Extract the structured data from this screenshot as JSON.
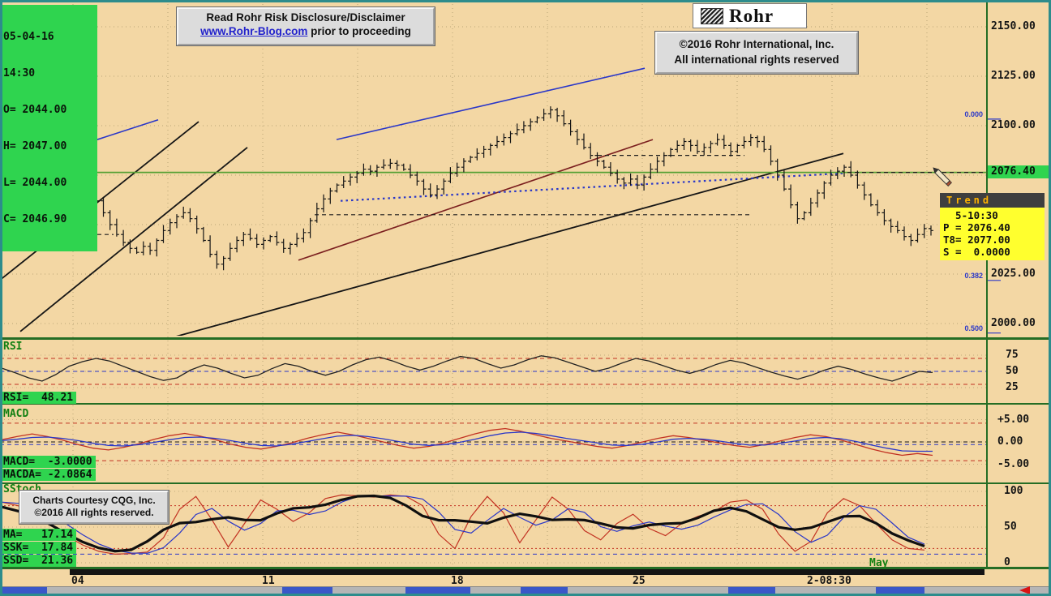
{
  "colors": {
    "background": "#f3d7a4",
    "frame_teal": "#2d8c8c",
    "green_box": "#2fd44f",
    "divider_green": "#256d25",
    "green_line": "#55a033",
    "grid": "#a38f63",
    "red": "#c23222",
    "blue": "#2936c8",
    "black": "#151515",
    "maroon": "#7b1f1f",
    "yellow": "#ffff2e",
    "trend_header_text": "#ffb300",
    "link_blue": "#2222cc"
  },
  "header": {
    "info_box": {
      "date": "05-04-16",
      "time": "14:30",
      "open": "O= 2044.00",
      "high": "H= 2047.00",
      "low": "L= 2044.00",
      "close": "C= 2046.90"
    },
    "disclaimer": {
      "title": "Read Rohr Risk Disclosure/Disclaimer",
      "link": "www.Rohr-Blog.com",
      "suffix": " prior to proceeding"
    },
    "logo_text": "Rohr",
    "copyright": {
      "line1": "©2016 Rohr International, Inc.",
      "line2": "All international rights reserved"
    }
  },
  "price_axis": {
    "tick_labels": [
      "2150.00",
      "2125.00",
      "2100.00",
      "2025.00",
      "2000.00"
    ],
    "current_price": "2076.40"
  },
  "fib_levels": [
    {
      "label": "0.000",
      "price": 2103.3
    },
    {
      "label": "0.382",
      "price": 2021.8
    },
    {
      "label": "0.500",
      "price": 1995.2
    }
  ],
  "trend_box": {
    "title": "Trend",
    "rows": [
      "  5-10:30",
      "P = 2076.40",
      "T8= 2077.00",
      "S =  0.0000"
    ]
  },
  "indicators": {
    "rsi": {
      "label": "RSI",
      "readout": "RSI=  48.21",
      "scale_labels": [
        "75",
        "50",
        "25"
      ]
    },
    "macd": {
      "label": "MACD",
      "readout1": "MACD=  -3.0000",
      "readout2": "MACDA= -2.0864",
      "scale_labels": [
        "+5.00",
        "0.00",
        "-5.00"
      ]
    },
    "stoch": {
      "label": "SStoch",
      "readout1": "MA=   17.14",
      "readout2": "SSK=  17.84",
      "readout3": "SSD=  21.36",
      "scale_labels": [
        "100",
        "50",
        "0"
      ]
    }
  },
  "cqg_box": {
    "line1": "Charts Courtesy CQG, Inc.",
    "line2": "©2016 All rights reserved."
  },
  "time_axis": {
    "labels": [
      {
        "text": "04",
        "x": 88
      },
      {
        "text": "11",
        "x": 323
      },
      {
        "text": "18",
        "x": 556
      },
      {
        "text": "25",
        "x": 780
      },
      {
        "text": "2-08:30",
        "x": 995
      }
    ],
    "month": "May"
  },
  "scrollbar": {
    "segments": [
      {
        "x": 0,
        "w": 58
      },
      {
        "x": 348,
        "w": 62
      },
      {
        "x": 500,
        "w": 80
      },
      {
        "x": 642,
        "w": 58
      },
      {
        "x": 898,
        "w": 58
      },
      {
        "x": 1080,
        "w": 60
      }
    ]
  },
  "chart_data": [
    {
      "id": "price",
      "type": "bar",
      "style": "ohlc-bars",
      "ylim": [
        1990,
        2160
      ],
      "visible_yticks": [
        2150,
        2125,
        2100,
        2025,
        2000
      ],
      "current_level": 2076.4,
      "last_bar": {
        "open": 2044.0,
        "high": 2047.0,
        "low": 2044.0,
        "close": 2046.9
      },
      "closes": [
        2053,
        2056,
        2052,
        2048,
        2050,
        2041,
        2045,
        2050,
        2054,
        2058,
        2062,
        2066,
        2069,
        2067,
        2062,
        2056,
        2050,
        2045,
        2041,
        2038,
        2036,
        2039,
        2037,
        2042,
        2047,
        2051,
        2054,
        2056,
        2053,
        2048,
        2042,
        2035,
        2030,
        2033,
        2038,
        2042,
        2045,
        2043,
        2040,
        2042,
        2044,
        2041,
        2038,
        2040,
        2043,
        2046,
        2052,
        2058,
        2063,
        2067,
        2070,
        2072,
        2074,
        2076,
        2078,
        2077,
        2079,
        2080,
        2081,
        2080,
        2078,
        2075,
        2072,
        2068,
        2065,
        2068,
        2072,
        2076,
        2079,
        2082,
        2084,
        2086,
        2088,
        2090,
        2092,
        2094,
        2096,
        2098,
        2100,
        2102,
        2104,
        2106,
        2108,
        2105,
        2101,
        2097,
        2093,
        2089,
        2085,
        2082,
        2079,
        2076,
        2073,
        2071,
        2073,
        2070,
        2074,
        2078,
        2082,
        2085,
        2088,
        2090,
        2092,
        2090,
        2087,
        2089,
        2091,
        2093,
        2090,
        2087,
        2090,
        2092,
        2094,
        2092,
        2088,
        2082,
        2075,
        2068,
        2060,
        2053,
        2056,
        2061,
        2066,
        2071,
        2075,
        2077,
        2079,
        2075,
        2070,
        2065,
        2060,
        2056,
        2052,
        2049,
        2047,
        2044,
        2042,
        2045,
        2048,
        2047
      ],
      "annotations": {
        "horizontal_green_line": 2076.4,
        "dashed_levels": [
          {
            "price": 2085,
            "x1": 737,
            "x2": 918
          },
          {
            "price": 2055,
            "x1": 388,
            "x2": 925
          },
          {
            "price": 2045,
            "x1": 48,
            "x2": 140
          },
          {
            "price": 2076.4,
            "x1": 1045,
            "x2": 1214
          }
        ],
        "trendlines": [
          {
            "color_key": "blue",
            "x1": 0,
            "price1": 2077,
            "x2": 195,
            "price2": 2103
          },
          {
            "color_key": "black",
            "x1": 0,
            "price1": 2022,
            "x2": 245,
            "price2": 2102
          },
          {
            "color_key": "black",
            "x1": 25,
            "price1": 1996,
            "x2": 305,
            "price2": 2089
          },
          {
            "color_key": "black",
            "x1": 195,
            "price1": 1991,
            "x2": 1040,
            "price2": 2086
          },
          {
            "color_key": "maroon",
            "x1": 368,
            "price1": 2032,
            "x2": 805,
            "price2": 2093
          },
          {
            "color_key": "blue",
            "x1": 415,
            "price1": 2093,
            "x2": 795,
            "price2": 2129
          },
          {
            "color_key": "blue",
            "style": "dotted",
            "x1": 420,
            "price1": 2062,
            "x2": 1042,
            "price2": 2076
          }
        ]
      }
    },
    {
      "id": "rsi",
      "type": "line",
      "ylim": [
        0,
        100
      ],
      "last": 48.21,
      "values": [
        55,
        48,
        40,
        35,
        45,
        58,
        65,
        70,
        66,
        58,
        50,
        42,
        36,
        40,
        52,
        60,
        55,
        47,
        40,
        44,
        54,
        62,
        58,
        50,
        44,
        50,
        60,
        68,
        72,
        66,
        58,
        52,
        58,
        66,
        73,
        70,
        62,
        55,
        60,
        68,
        74,
        71,
        64,
        57,
        50,
        55,
        63,
        70,
        66,
        59,
        52,
        47,
        53,
        61,
        67,
        63,
        56,
        49,
        43,
        38,
        44,
        52,
        58,
        53,
        46,
        40,
        35,
        42,
        50,
        48.21
      ],
      "ref_lines": [
        {
          "value": 70,
          "color_key": "red",
          "style": "dashed"
        },
        {
          "value": 50,
          "color_key": "blue",
          "style": "dashed"
        },
        {
          "value": 30,
          "color_key": "red",
          "style": "dashed"
        }
      ]
    },
    {
      "id": "macd",
      "type": "line",
      "ylim": [
        -7.5,
        7.5
      ],
      "last": {
        "MACD": -3.0,
        "MACDA": -2.0864
      },
      "series": [
        {
          "name": "MACD",
          "color_key": "red",
          "values": [
            0.5,
            1.2,
            1.8,
            1.2,
            0.4,
            -0.6,
            -1.4,
            -1.8,
            -1.2,
            -0.4,
            0.6,
            1.4,
            1.9,
            1.3,
            0.5,
            -0.5,
            -1.2,
            -1.6,
            -1.0,
            -0.2,
            0.8,
            1.6,
            2.2,
            1.6,
            0.8,
            0.0,
            -0.8,
            -1.4,
            -1.0,
            -0.2,
            0.8,
            1.8,
            2.6,
            3.0,
            2.4,
            1.6,
            0.8,
            0.2,
            -0.4,
            -1.0,
            -1.4,
            -0.8,
            0.0,
            0.8,
            1.4,
            1.0,
            0.4,
            -0.2,
            -0.8,
            -1.2,
            -0.6,
            0.2,
            1.0,
            1.6,
            1.2,
            0.4,
            -0.6,
            -1.6,
            -2.4,
            -3.0,
            -2.6,
            -3.0
          ]
        },
        {
          "name": "MACDA",
          "color_key": "blue",
          "values": [
            0.3,
            0.6,
            1.0,
            1.1,
            0.8,
            0.3,
            -0.3,
            -0.8,
            -0.9,
            -0.6,
            -0.1,
            0.5,
            1.0,
            1.1,
            0.8,
            0.3,
            -0.3,
            -0.8,
            -0.9,
            -0.5,
            0.1,
            0.7,
            1.3,
            1.5,
            1.2,
            0.7,
            0.1,
            -0.5,
            -0.8,
            -0.6,
            -0.1,
            0.6,
            1.4,
            2.0,
            2.2,
            1.9,
            1.4,
            0.8,
            0.3,
            -0.2,
            -0.7,
            -0.8,
            -0.5,
            0.0,
            0.6,
            0.8,
            0.6,
            0.2,
            -0.3,
            -0.7,
            -0.7,
            -0.3,
            0.2,
            0.8,
            1.0,
            0.7,
            0.1,
            -0.7,
            -1.4,
            -2.0,
            -2.1,
            -2.0864
          ]
        }
      ],
      "ref_lines": [
        {
          "value": 4.2,
          "color_key": "red",
          "style": "dashed"
        },
        {
          "value": 0,
          "color_key": "black",
          "style": "dashed"
        },
        {
          "value": -0.6,
          "color_key": "blue",
          "style": "dashed"
        },
        {
          "value": -4.2,
          "color_key": "red",
          "style": "dashed"
        }
      ]
    },
    {
      "id": "stoch",
      "type": "line",
      "ylim": [
        0,
        100
      ],
      "last": {
        "MA": 17.14,
        "SSK": 17.84,
        "SSD": 21.36
      },
      "series": [
        {
          "name": "SSK",
          "color_key": "red",
          "values": [
            85,
            80,
            70,
            55,
            38,
            25,
            16,
            12,
            13,
            15,
            35,
            75,
            93,
            60,
            22,
            55,
            88,
            75,
            58,
            70,
            90,
            95,
            94,
            92,
            95,
            93,
            80,
            40,
            20,
            65,
            93,
            70,
            28,
            60,
            92,
            75,
            45,
            32,
            55,
            68,
            48,
            38,
            55,
            65,
            72,
            85,
            88,
            75,
            40,
            16,
            30,
            70,
            90,
            80,
            55,
            32,
            20,
            17.84
          ]
        }
      ],
      "smoothed_series": [
        {
          "name": "SSD",
          "color_key": "blue",
          "from": "SSK"
        },
        {
          "name": "MA",
          "color_key": "black",
          "from": "SSK",
          "thick": true
        }
      ],
      "ref_lines": [
        {
          "value": 80,
          "color_key": "red",
          "style": "dotted"
        },
        {
          "value": 20,
          "color_key": "red",
          "style": "dotted"
        },
        {
          "value": 12,
          "color_key": "blue",
          "style": "dashed"
        }
      ]
    }
  ]
}
